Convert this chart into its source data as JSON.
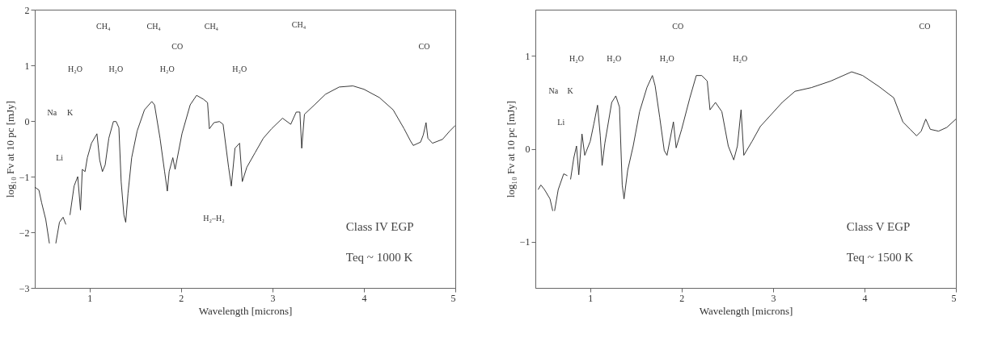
{
  "chart_data": [
    {
      "type": "line",
      "xlabel": "Wavelength  [microns]",
      "ylabel": "log₁₀ Fν at 10 pc [mJy]",
      "xlim": [
        0.4,
        5
      ],
      "ylim": [
        -3,
        2
      ],
      "xticks": [
        1,
        2,
        3,
        4,
        5
      ],
      "yticks": [
        -3,
        -2,
        -1,
        0,
        1,
        2
      ],
      "grid": false,
      "line_style": "solid",
      "series": [
        {
          "color": "#222222",
          "x": [
            0.4,
            0.445,
            0.475,
            0.52,
            0.56,
            0.59,
            0.63,
            0.67,
            0.71,
            0.74,
            0.765,
            0.785,
            0.83,
            0.87,
            0.9,
            0.92,
            0.95,
            0.975,
            1.02,
            1.08,
            1.11,
            1.14,
            1.17,
            1.21,
            1.26,
            1.29,
            1.32,
            1.345,
            1.375,
            1.395,
            1.42,
            1.46,
            1.52,
            1.6,
            1.68,
            1.71,
            1.77,
            1.82,
            1.85,
            1.87,
            1.91,
            1.935,
            2.01,
            2.1,
            2.17,
            2.245,
            2.29,
            2.31,
            2.36,
            2.42,
            2.46,
            2.52,
            2.55,
            2.59,
            2.64,
            2.67,
            2.72,
            2.81,
            2.9,
            2.99,
            3.11,
            3.2,
            3.26,
            3.3,
            3.32,
            3.35,
            3.46,
            3.58,
            3.73,
            3.88,
            4.0,
            4.17,
            4.32,
            4.44,
            4.51,
            4.54,
            4.62,
            4.65,
            4.68,
            4.7,
            4.75,
            4.86,
            4.94,
            5.0
          ],
          "values": [
            -1.19,
            -1.24,
            -1.47,
            -1.77,
            -2.2,
            null,
            -2.2,
            -1.82,
            -1.73,
            -1.86,
            null,
            -1.69,
            -1.17,
            -1.0,
            -1.6,
            -0.87,
            -0.91,
            -0.66,
            -0.4,
            -0.23,
            -0.7,
            -0.91,
            -0.79,
            -0.31,
            -0.01,
            -0.01,
            -0.12,
            -1.09,
            -1.69,
            -1.82,
            -1.3,
            -0.66,
            -0.18,
            0.2,
            0.35,
            0.29,
            -0.31,
            -0.91,
            -1.26,
            -0.91,
            -0.66,
            -0.87,
            -0.23,
            0.29,
            0.46,
            0.39,
            0.33,
            -0.14,
            -0.03,
            -0.01,
            -0.06,
            -0.83,
            -1.17,
            -0.49,
            -0.4,
            -1.09,
            -0.83,
            -0.57,
            -0.31,
            -0.14,
            0.05,
            -0.06,
            0.16,
            0.16,
            -0.49,
            0.12,
            0.29,
            0.48,
            0.61,
            0.63,
            0.57,
            0.42,
            0.2,
            -0.14,
            -0.36,
            -0.44,
            -0.38,
            -0.25,
            -0.03,
            -0.31,
            -0.4,
            -0.33,
            -0.18,
            -0.08
          ]
        }
      ],
      "annotations": [
        "CH₄",
        "CH₄",
        "CH₄",
        "CH₄",
        "CO",
        "CO",
        "H₂O",
        "H₂O",
        "H₂O",
        "H₂O",
        "Na",
        "K",
        "Li",
        "H₂–H₂",
        "Class IV EGP",
        "Teq ~ 1000 K"
      ]
    },
    {
      "type": "line",
      "xlabel": "Wavelength  [microns]",
      "ylabel": "log₁₀ Fν at 10 pc [mJy]",
      "xlim": [
        0.4,
        5
      ],
      "ylim": [
        -1.5,
        1.5
      ],
      "xticks": [
        1,
        2,
        3,
        4,
        5
      ],
      "yticks": [
        -1,
        0,
        1
      ],
      "grid": false,
      "line_style": "solid",
      "series": [
        {
          "color": "#222222",
          "x": [
            0.43,
            0.46,
            0.5,
            0.56,
            0.59,
            0.6,
            0.61,
            0.65,
            0.71,
            0.75,
            0.77,
            0.785,
            0.82,
            0.85,
            0.875,
            0.91,
            0.94,
            1.0,
            1.04,
            1.08,
            1.11,
            1.13,
            1.16,
            1.235,
            1.28,
            1.32,
            1.35,
            1.37,
            1.41,
            1.47,
            1.54,
            1.62,
            1.68,
            1.71,
            1.76,
            1.81,
            1.84,
            1.91,
            1.94,
            2.0,
            2.09,
            2.16,
            2.22,
            2.28,
            2.31,
            2.37,
            2.44,
            2.51,
            2.57,
            2.61,
            2.65,
            2.68,
            2.77,
            2.86,
            2.98,
            3.1,
            3.24,
            3.42,
            3.63,
            3.86,
            3.98,
            4.16,
            4.32,
            4.42,
            4.5,
            4.57,
            4.62,
            4.67,
            4.72,
            4.81,
            4.9,
            5.0
          ],
          "values": [
            -0.44,
            -0.39,
            -0.44,
            -0.54,
            -0.67,
            null,
            -0.67,
            -0.44,
            -0.27,
            -0.29,
            null,
            -0.33,
            -0.1,
            0.03,
            -0.28,
            0.16,
            -0.07,
            0.08,
            0.27,
            0.47,
            0.14,
            -0.18,
            0.06,
            0.5,
            0.57,
            0.45,
            -0.39,
            -0.54,
            -0.23,
            0.03,
            0.4,
            0.66,
            0.79,
            0.68,
            0.34,
            -0.02,
            -0.07,
            0.29,
            0.01,
            0.21,
            0.55,
            0.79,
            0.79,
            0.73,
            0.42,
            0.5,
            0.4,
            0.03,
            -0.12,
            0.03,
            0.42,
            -0.07,
            0.08,
            0.24,
            0.37,
            0.5,
            0.62,
            0.66,
            0.73,
            0.83,
            0.79,
            0.67,
            0.55,
            0.29,
            0.21,
            0.14,
            0.19,
            0.32,
            0.21,
            0.19,
            0.23,
            0.32
          ]
        }
      ],
      "annotations": [
        "CO",
        "CO",
        "H₂O",
        "H₂O",
        "H₂O",
        "H₂O",
        "Na",
        "K",
        "Li",
        "Class V EGP",
        "Teq ~ 1500 K"
      ]
    }
  ]
}
